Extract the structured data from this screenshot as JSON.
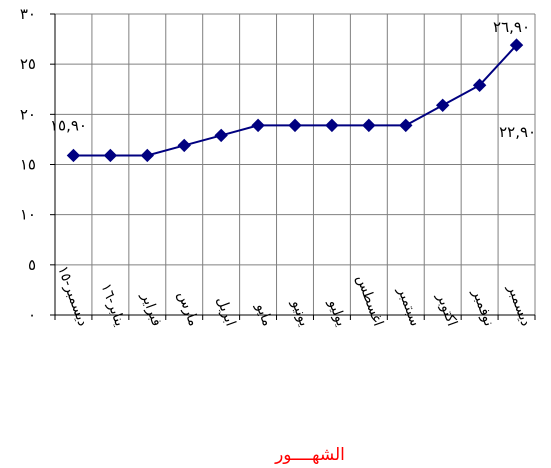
{
  "chart_data": {
    "type": "line",
    "title": "",
    "xlabel": "الشهــــور",
    "ylabel": "",
    "ylim": [
      0,
      30
    ],
    "yticks": [
      0,
      5,
      10,
      15,
      20,
      25,
      30
    ],
    "ytick_labels": [
      "٠",
      "٥",
      "١٠",
      "١٥",
      "٢٠",
      "٢٥",
      "٣٠"
    ],
    "grid": true,
    "legend": "none",
    "categories": [
      "ديسمبر-١٥",
      "يناير-١٦",
      "فبراير",
      "مارس",
      "ابريل",
      "مايو",
      "يونيو",
      "يوليو",
      "اغسطس",
      "سبتمبر",
      "اكتوبر",
      "نوفمبر",
      "ديسمبر"
    ],
    "series": [
      {
        "color": "#000080",
        "marker": "diamond",
        "values": [
          15.9,
          15.9,
          15.9,
          16.9,
          17.9,
          18.9,
          18.9,
          18.9,
          18.9,
          18.9,
          20.9,
          22.9,
          26.9
        ]
      }
    ],
    "annotations": [
      {
        "text": "١٥,٩٠",
        "point_index": 0
      },
      {
        "text": "٢٢,٩٠",
        "point_index": 11
      },
      {
        "text": "٢٦,٩٠",
        "point_index": 12
      }
    ],
    "colors": {
      "line": "#000080",
      "grid": "#808080",
      "xlabel": "#ff0000"
    }
  }
}
